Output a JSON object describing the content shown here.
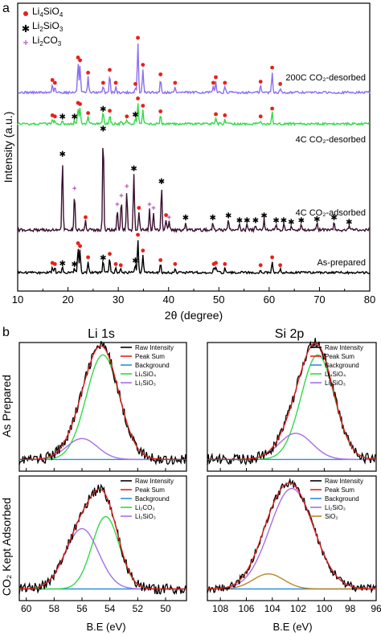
{
  "panel_a": {
    "label": "a",
    "legend": [
      {
        "name": "Li4SiO4",
        "base": "Li",
        "s1": "4",
        "mid": "SiO",
        "s2": "4",
        "color": "#e8201c",
        "marker": "dot"
      },
      {
        "name": "Li2SiO3",
        "base": "Li",
        "s1": "2",
        "mid": "SiO",
        "s2": "3",
        "color": "#33d94a",
        "marker": "star"
      },
      {
        "name": "Li2CO3",
        "base": "Li",
        "s1": "2",
        "mid": "CO",
        "s2": "3",
        "color": "#c060c0",
        "marker": "plus"
      }
    ],
    "ylabel": "Intensity (a.u.)",
    "xlabel": "2θ (degree)",
    "xticks": [
      "10",
      "20",
      "30",
      "40",
      "50",
      "60",
      "70",
      "80"
    ],
    "trace_labels": [
      "200C CO₂-desorbed",
      "4C CO₂-desorbed",
      "4C CO₂-adsorbed",
      "As-prepared"
    ]
  },
  "panel_b": {
    "label": "b",
    "col_titles": [
      "Li 1s",
      "Si 2p"
    ],
    "row_titles": [
      "As Prepared",
      "CO₂ Kept Adsorbed"
    ],
    "xlabel": "B.E (eV)",
    "li_ticks": [
      "60",
      "58",
      "56",
      "54",
      "52",
      "50"
    ],
    "si_ticks": [
      "108",
      "106",
      "104",
      "102",
      "100",
      "98",
      "96"
    ],
    "legends": {
      "tl": [
        "Raw Intensity",
        "Peak Sum",
        "Background",
        "Li₄SiO₄",
        "Li₂SiO₃"
      ],
      "tr": [
        "Raw Intensity",
        "Peak Sum",
        "Background",
        "Li₄SiO₄",
        "Li₂SiO₃"
      ],
      "bl": [
        "Raw Intensity",
        "Peak Sum",
        "Background",
        "Li₂CO₃",
        "Li₂SiO₃"
      ],
      "br": [
        "Raw Intensity",
        "Peak Sum",
        "Background",
        "Li₂SiO₃",
        "SiO₂"
      ]
    }
  },
  "chart_data": [
    {
      "type": "line",
      "xlabel": "2θ (degree)",
      "ylabel": "Intensity (a.u.)",
      "xlim": [
        10,
        80
      ],
      "series": [
        {
          "name": "200C CO₂-desorbed",
          "color": "#8a6ff0",
          "peaks": [
            [
              16.9,
              0.15
            ],
            [
              17.4,
              0.1
            ],
            [
              22.0,
              0.55
            ],
            [
              22.4,
              0.5
            ],
            [
              24.0,
              0.28
            ],
            [
              27.0,
              0.1
            ],
            [
              28.3,
              0.33
            ],
            [
              29.5,
              0.1
            ],
            [
              33.4,
              0.08
            ],
            [
              33.9,
              0.9
            ],
            [
              34.9,
              0.42
            ],
            [
              38.4,
              0.25
            ],
            [
              41.3,
              0.1
            ],
            [
              48.9,
              0.1
            ],
            [
              49.4,
              0.2
            ],
            [
              51.2,
              0.1
            ],
            [
              58.3,
              0.12
            ],
            [
              60.6,
              0.37
            ],
            [
              62.2,
              0.08
            ]
          ]
        },
        {
          "name": "4C CO₂-desorbed",
          "color": "#33d94a",
          "peaks": [
            [
              16.9,
              0.08
            ],
            [
              17.4,
              0.06
            ],
            [
              18.9,
              0.06
            ],
            [
              21.3,
              0.06
            ],
            [
              22.0,
              0.3
            ],
            [
              22.4,
              0.28
            ],
            [
              24.0,
              0.12
            ],
            [
              27.0,
              0.2
            ],
            [
              28.3,
              0.16
            ],
            [
              30.6,
              0.05
            ],
            [
              31.7,
              0.06
            ],
            [
              33.4,
              0.1
            ],
            [
              33.9,
              0.38
            ],
            [
              34.9,
              0.25
            ],
            [
              38.4,
              0.15
            ],
            [
              49.4,
              0.1
            ],
            [
              51.2,
              0.08
            ],
            [
              58.3,
              0.06
            ],
            [
              60.6,
              0.2
            ]
          ]
        },
        {
          "name": "4C CO₂-adsorbed",
          "color": "#3a1030",
          "peaks": [
            [
              18.9,
              1.0
            ],
            [
              21.3,
              0.52
            ],
            [
              23.5,
              0.12
            ],
            [
              27.0,
              1.35
            ],
            [
              29.8,
              0.3
            ],
            [
              30.6,
              0.42
            ],
            [
              31.7,
              0.55
            ],
            [
              33.1,
              0.8
            ],
            [
              34.1,
              0.25
            ],
            [
              36.2,
              0.3
            ],
            [
              37.0,
              0.25
            ],
            [
              38.6,
              0.62
            ],
            [
              39.5,
              0.15
            ],
            [
              40.1,
              0.12
            ],
            [
              43.4,
              0.12
            ],
            [
              48.8,
              0.12
            ],
            [
              51.9,
              0.15
            ],
            [
              54.1,
              0.08
            ],
            [
              55.6,
              0.08
            ],
            [
              57.3,
              0.08
            ],
            [
              59.0,
              0.15
            ],
            [
              61.4,
              0.08
            ],
            [
              62.9,
              0.08
            ],
            [
              64.4,
              0.06
            ],
            [
              66.4,
              0.08
            ],
            [
              69.5,
              0.1
            ],
            [
              72.9,
              0.12
            ],
            [
              75.9,
              0.06
            ]
          ]
        },
        {
          "name": "As-prepared",
          "color": "#000000",
          "peaks": [
            [
              16.9,
              0.1
            ],
            [
              17.4,
              0.08
            ],
            [
              18.9,
              0.1
            ],
            [
              21.3,
              0.08
            ],
            [
              22.0,
              0.45
            ],
            [
              22.4,
              0.4
            ],
            [
              24.0,
              0.2
            ],
            [
              27.0,
              0.2
            ],
            [
              28.3,
              0.26
            ],
            [
              29.5,
              0.08
            ],
            [
              30.5,
              0.06
            ],
            [
              33.4,
              0.15
            ],
            [
              33.9,
              0.6
            ],
            [
              34.9,
              0.32
            ],
            [
              38.4,
              0.15
            ],
            [
              41.3,
              0.08
            ],
            [
              49.0,
              0.08
            ],
            [
              49.4,
              0.1
            ],
            [
              51.2,
              0.08
            ],
            [
              58.3,
              0.06
            ],
            [
              60.6,
              0.2
            ],
            [
              62.2,
              0.06
            ]
          ]
        }
      ]
    },
    {
      "type": "line",
      "title": "Li 1s",
      "ylabel": "As Prepared",
      "xlim": [
        60.5,
        48.5
      ],
      "components": [
        {
          "name": "Li₄SiO₄",
          "color": "#33d94a",
          "center": 54.5,
          "amp": 1.0,
          "fwhm": 2.8
        },
        {
          "name": "Li₂SiO₃",
          "color": "#a86ee6",
          "center": 56.0,
          "amp": 0.2,
          "fwhm": 2.6
        }
      ]
    },
    {
      "type": "line",
      "title": "Si 2p",
      "ylabel": "As Prepared",
      "xlim": [
        109,
        96
      ],
      "components": [
        {
          "name": "Li₄SiO₄",
          "color": "#33d94a",
          "center": 100.5,
          "amp": 1.0,
          "fwhm": 3.0
        },
        {
          "name": "Li₂SiO₃",
          "color": "#a86ee6",
          "center": 102.2,
          "amp": 0.25,
          "fwhm": 3.0
        }
      ]
    },
    {
      "type": "line",
      "title": "Li 1s",
      "ylabel": "CO₂ Kept Adsorbed",
      "xlim": [
        60.5,
        48.5
      ],
      "components": [
        {
          "name": "Li₂CO₃",
          "color": "#33d94a",
          "center": 54.3,
          "amp": 0.72,
          "fwhm": 2.3
        },
        {
          "name": "Li₂SiO₃",
          "color": "#a86ee6",
          "center": 56.0,
          "amp": 0.6,
          "fwhm": 2.8
        }
      ]
    },
    {
      "type": "line",
      "title": "Si 2p",
      "ylabel": "CO₂ Kept Adsorbed",
      "xlim": [
        109,
        96
      ],
      "components": [
        {
          "name": "Li₂SiO₃",
          "color": "#a86ee6",
          "center": 102.5,
          "amp": 1.0,
          "fwhm": 4.0
        },
        {
          "name": "SiO₂",
          "color": "#b8862a",
          "center": 104.3,
          "amp": 0.15,
          "fwhm": 2.8
        }
      ]
    }
  ]
}
